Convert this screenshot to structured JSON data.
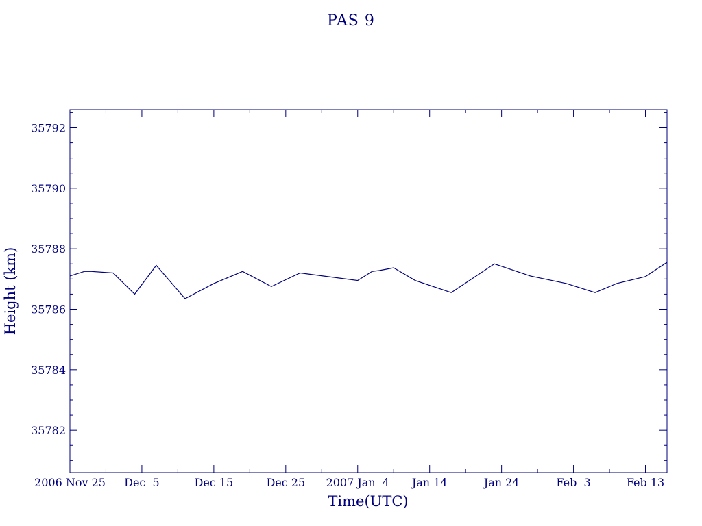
{
  "chart_data": {
    "type": "line",
    "title": "PAS 9",
    "xlabel": "Time(UTC)",
    "ylabel": "Height (km)",
    "x_tick_labels": [
      "2006 Nov 25",
      "Dec  5",
      "Dec 15",
      "Dec 25",
      "2007 Jan  4",
      "Jan 14",
      "Jan 24",
      "Feb  3",
      "Feb 13"
    ],
    "x_ticks": [
      "2006-11-25",
      "2006-12-05",
      "2006-12-15",
      "2006-12-25",
      "2007-01-04",
      "2007-01-14",
      "2007-01-24",
      "2007-02-03",
      "2007-02-13"
    ],
    "xlim": [
      "2006-11-25",
      "2007-02-16"
    ],
    "y_ticks": [
      35782,
      35784,
      35786,
      35788,
      35790,
      35792
    ],
    "ylim": [
      35780.6,
      35792.6
    ],
    "grid": false,
    "x": [
      "2006-11-25",
      "2006-11-27",
      "2006-11-28",
      "2006-12-01",
      "2006-12-04",
      "2006-12-07",
      "2006-12-11",
      "2006-12-15",
      "2006-12-19",
      "2006-12-23",
      "2006-12-27",
      "2007-01-04",
      "2007-01-06",
      "2007-01-07",
      "2007-01-09",
      "2007-01-12",
      "2007-01-17",
      "2007-01-23",
      "2007-01-28",
      "2007-02-02",
      "2007-02-06",
      "2007-02-09",
      "2007-02-13",
      "2007-02-16"
    ],
    "series": [
      {
        "values": [
          35787.1,
          35787.25,
          35787.25,
          35787.2,
          35786.5,
          35787.45,
          35786.35,
          35786.85,
          35787.25,
          35786.75,
          35787.2,
          35786.95,
          35787.25,
          35787.28,
          35787.37,
          35786.95,
          35786.55,
          35787.5,
          35787.1,
          35786.85,
          35786.55,
          35786.85,
          35787.08,
          35787.55
        ]
      }
    ]
  }
}
